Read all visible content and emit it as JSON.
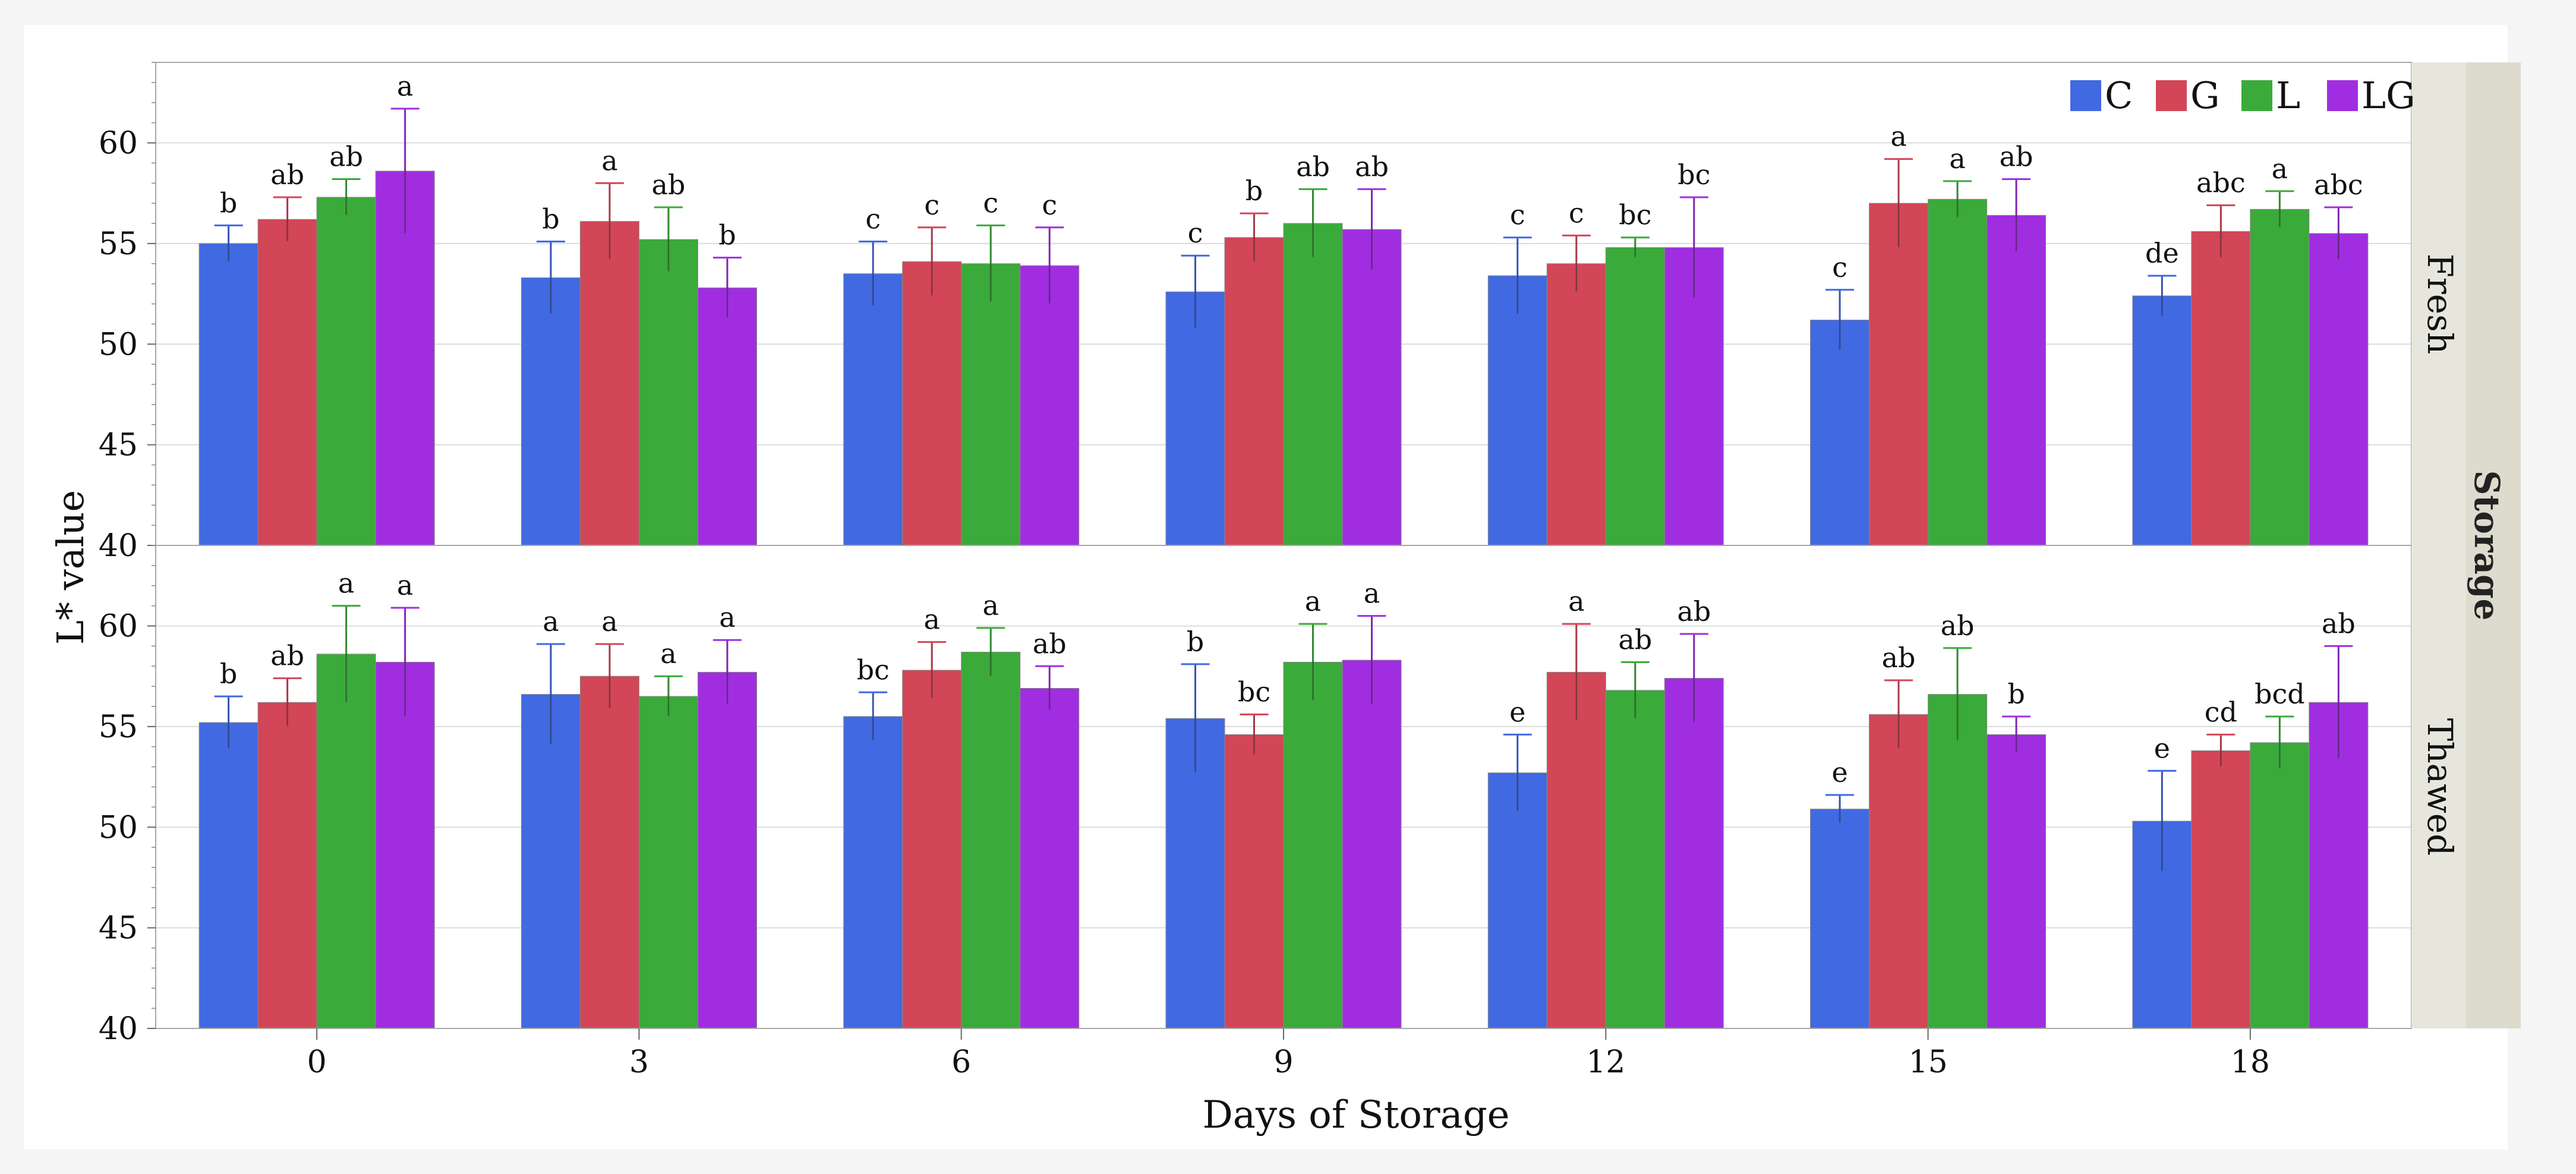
{
  "chart_data": {
    "type": "bar",
    "ylabel": "L* value",
    "xlabel": "Days of Storage",
    "facet_title": "Storage",
    "categories": [
      "0",
      "3",
      "6",
      "9",
      "12",
      "15",
      "18"
    ],
    "yticks": [
      "40",
      "45",
      "50",
      "55",
      "60"
    ],
    "ylim": [
      40,
      64
    ],
    "legend": [
      {
        "name": "C",
        "color": "#4169e1"
      },
      {
        "name": "G",
        "color": "#d24657"
      },
      {
        "name": "L",
        "color": "#3aaa3a"
      },
      {
        "name": "LG",
        "color": "#a02ee0"
      }
    ],
    "panels": [
      {
        "label": "Fresh",
        "series": [
          {
            "name": "C",
            "values": [
              55.0,
              53.3,
              53.5,
              52.6,
              53.4,
              51.2,
              52.4
            ],
            "errors": [
              0.9,
              1.8,
              1.6,
              1.8,
              1.9,
              1.5,
              1.0
            ],
            "letters": [
              "b",
              "b",
              "c",
              "c",
              "c",
              "c",
              "de"
            ]
          },
          {
            "name": "G",
            "values": [
              56.2,
              56.1,
              54.1,
              55.3,
              54.0,
              57.0,
              55.6
            ],
            "errors": [
              1.1,
              1.9,
              1.7,
              1.2,
              1.4,
              2.2,
              1.3
            ],
            "letters": [
              "ab",
              "a",
              "c",
              "b",
              "c",
              "a",
              "abc"
            ]
          },
          {
            "name": "L",
            "values": [
              57.3,
              55.2,
              54.0,
              56.0,
              54.8,
              57.2,
              56.7
            ],
            "errors": [
              0.9,
              1.6,
              1.9,
              1.7,
              0.5,
              0.9,
              0.9
            ],
            "letters": [
              "ab",
              "ab",
              "c",
              "ab",
              "bc",
              "a",
              "a"
            ]
          },
          {
            "name": "LG",
            "values": [
              58.6,
              52.8,
              53.9,
              55.7,
              54.8,
              56.4,
              55.5
            ],
            "errors": [
              3.1,
              1.5,
              1.9,
              2.0,
              2.5,
              1.8,
              1.3
            ],
            "letters": [
              "a",
              "b",
              "c",
              "ab",
              "bc",
              "ab",
              "abc"
            ]
          }
        ]
      },
      {
        "label": "Thawed",
        "series": [
          {
            "name": "C",
            "values": [
              55.2,
              56.6,
              55.5,
              55.4,
              52.7,
              50.9,
              50.3
            ],
            "errors": [
              1.3,
              2.5,
              1.2,
              2.7,
              1.9,
              0.7,
              2.5
            ],
            "letters": [
              "b",
              "a",
              "bc",
              "b",
              "e",
              "e",
              "e"
            ]
          },
          {
            "name": "G",
            "values": [
              56.2,
              57.5,
              57.8,
              54.6,
              57.7,
              55.6,
              53.8
            ],
            "errors": [
              1.2,
              1.6,
              1.4,
              1.0,
              2.4,
              1.7,
              0.8
            ],
            "letters": [
              "ab",
              "a",
              "a",
              "bc",
              "a",
              "ab",
              "cd"
            ]
          },
          {
            "name": "L",
            "values": [
              58.6,
              56.5,
              58.7,
              58.2,
              56.8,
              56.6,
              54.2
            ],
            "errors": [
              2.4,
              1.0,
              1.2,
              1.9,
              1.4,
              2.3,
              1.3
            ],
            "letters": [
              "a",
              "a",
              "a",
              "a",
              "ab",
              "ab",
              "bcd"
            ]
          },
          {
            "name": "LG",
            "values": [
              58.2,
              57.7,
              56.9,
              58.3,
              57.4,
              54.6,
              56.2
            ],
            "errors": [
              2.7,
              1.6,
              1.1,
              2.2,
              2.2,
              0.9,
              2.8
            ],
            "letters": [
              "a",
              "a",
              "ab",
              "a",
              "ab",
              "b",
              "ab"
            ]
          }
        ]
      }
    ]
  }
}
